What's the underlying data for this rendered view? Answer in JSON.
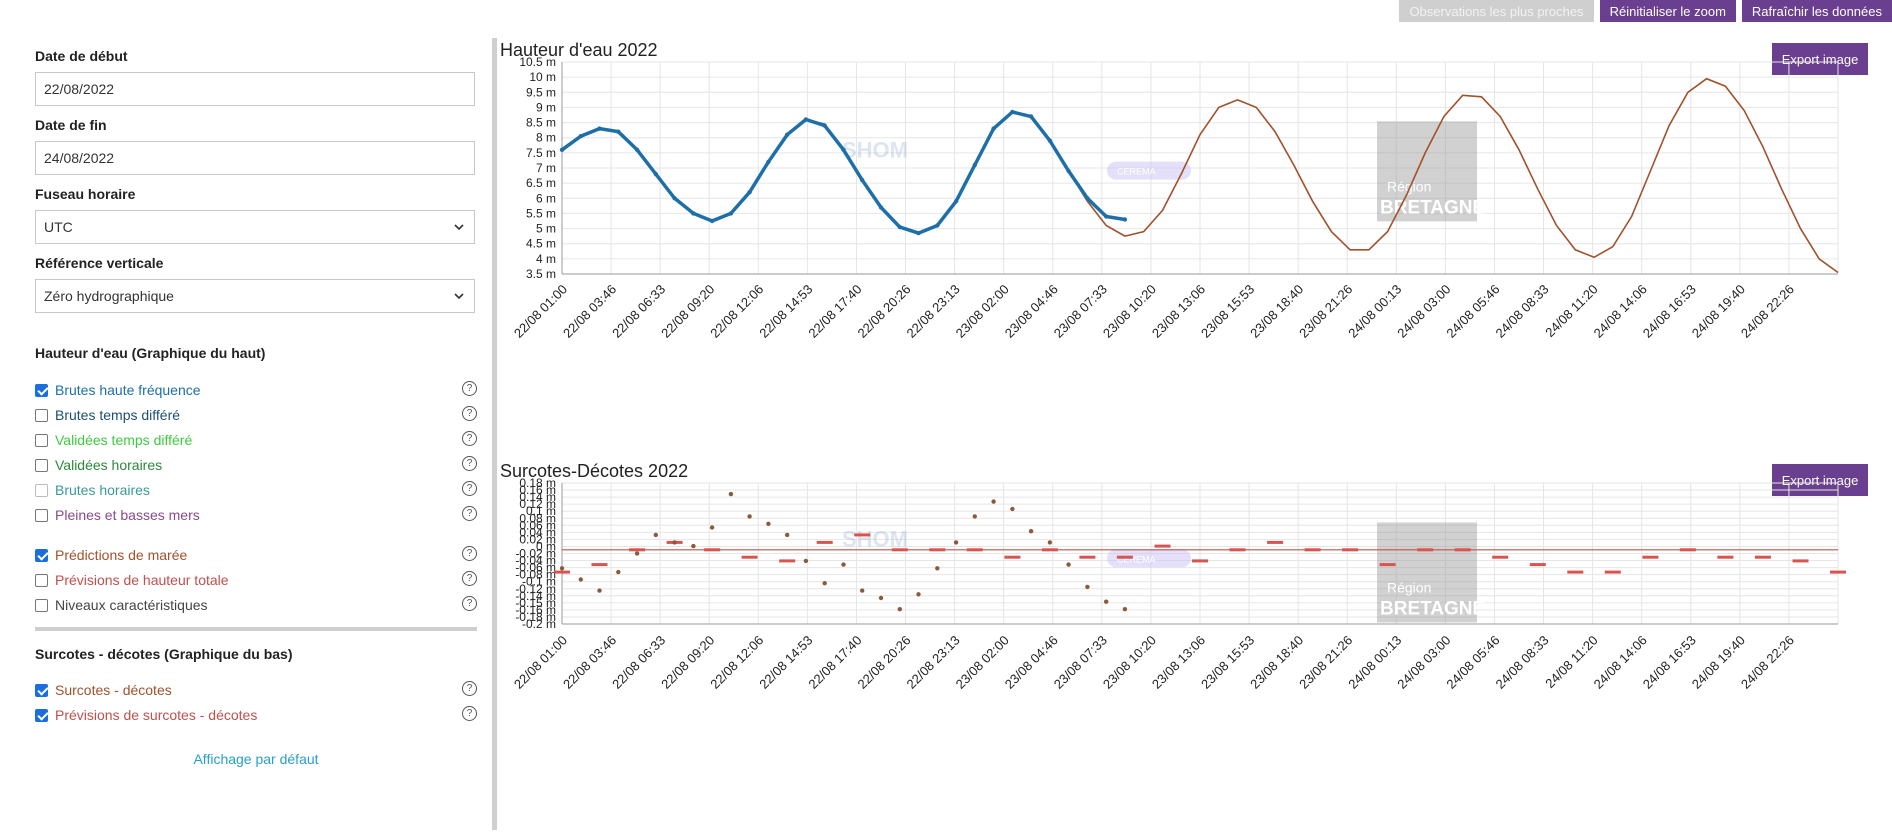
{
  "toolbar": {
    "closest_obs_label": "Observations les plus proches",
    "reset_zoom_label": "Réinitialiser le zoom",
    "refresh_label": "Rafraîchir les données"
  },
  "form": {
    "start_date_label": "Date de début",
    "start_date_value": "22/08/2022",
    "end_date_label": "Date de fin",
    "end_date_value": "24/08/2022",
    "timezone_label": "Fuseau horaire",
    "timezone_value": "UTC",
    "vref_label": "Référence verticale",
    "vref_value": "Zéro hydrographique"
  },
  "sections": {
    "water_height": "Hauteur d'eau (Graphique du haut)",
    "surge": "Surcotes - décotes (Graphique du bas)"
  },
  "options": [
    {
      "label": "Brutes haute fréquence",
      "checked": true,
      "color": "#1e6fa8"
    },
    {
      "label": "Brutes temps différé",
      "checked": false,
      "color": "#1d4f73"
    },
    {
      "label": "Validées temps différé",
      "checked": false,
      "color": "#3dcc3d"
    },
    {
      "label": "Validées horaires",
      "checked": false,
      "color": "#2a8a3a"
    },
    {
      "label": "Brutes horaires",
      "checked": false,
      "color": "#3a9a9a"
    },
    {
      "label": "Pleines et basses mers",
      "checked": false,
      "color": "#8a4a8a"
    },
    {
      "label": "Prédictions de marée",
      "checked": true,
      "color": "#a0522d"
    },
    {
      "label": "Prévisions de hauteur totale",
      "checked": false,
      "color": "#c0504d"
    },
    {
      "label": "Niveaux caractéristiques",
      "checked": false,
      "color": "#444444"
    },
    {
      "label": "Surcotes - décotes",
      "checked": true,
      "color": "#a0522d"
    },
    {
      "label": "Prévisions de surcotes - décotes",
      "checked": true,
      "color": "#c0504d"
    }
  ],
  "default_view_label": "Affichage par défaut",
  "export_label": "Export image",
  "watermarks": {
    "shom": "SHOM",
    "region": "Région",
    "bretagne": "BRETAGNE",
    "badge": "CEREMA"
  },
  "x_tick_labels": [
    "22/08 01:00",
    "22/08 03:46",
    "22/08 06:33",
    "22/08 09:20",
    "22/08 12:06",
    "22/08 14:53",
    "22/08 17:40",
    "22/08 20:26",
    "22/08 23:13",
    "23/08 02:00",
    "23/08 04:46",
    "23/08 07:33",
    "23/08 10:20",
    "23/08 13:06",
    "23/08 15:53",
    "23/08 18:40",
    "23/08 21:26",
    "24/08 00:13",
    "24/08 03:00",
    "24/08 05:46",
    "24/08 08:33",
    "24/08 11:20",
    "24/08 14:06",
    "24/08 16:53",
    "24/08 19:40",
    "24/08 22:26"
  ],
  "chart_data": [
    {
      "type": "line",
      "title": "Hauteur d'eau 2022",
      "ylim": [
        3.5,
        10.5
      ],
      "y_ticks": [
        "10.5 m",
        "10 m",
        "9.5 m",
        "9 m",
        "8.5 m",
        "8 m",
        "7.5 m",
        "7 m",
        "6.5 m",
        "6 m",
        "5.5 m",
        "5 m",
        "4.5 m",
        "4 m",
        "3.5 m"
      ],
      "x_hours": [
        0,
        68
      ],
      "series": [
        {
          "name": "Brutes haute fréquence",
          "color": "#1e6fa8",
          "x_hours": [
            0,
            1,
            2,
            3,
            4,
            5,
            6,
            7,
            8,
            9,
            10,
            11,
            12,
            13,
            14,
            15,
            16,
            17,
            18,
            19,
            20,
            21,
            22,
            23,
            24,
            25,
            26,
            27,
            28,
            29,
            30
          ],
          "values": [
            7.6,
            8.05,
            8.3,
            8.2,
            7.6,
            6.8,
            6.0,
            5.5,
            5.25,
            5.5,
            6.2,
            7.2,
            8.1,
            8.6,
            8.4,
            7.6,
            6.6,
            5.7,
            5.05,
            4.85,
            5.1,
            5.9,
            7.1,
            8.3,
            8.85,
            8.7,
            7.9,
            6.9,
            6.0,
            5.4,
            5.3
          ]
        },
        {
          "name": "Prédictions de marée",
          "color": "#a0522d",
          "x_hours": [
            0,
            1,
            2,
            3,
            4,
            5,
            6,
            7,
            8,
            9,
            10,
            11,
            12,
            13,
            14,
            15,
            16,
            17,
            18,
            19,
            20,
            21,
            22,
            23,
            24,
            25,
            26,
            27,
            28,
            29,
            30,
            31,
            32,
            33,
            34,
            35,
            36,
            37,
            38,
            39,
            40,
            41,
            42,
            43,
            44,
            45,
            46,
            47,
            48,
            49,
            50,
            51,
            52,
            53,
            54,
            55,
            56,
            57,
            58,
            59,
            60,
            61,
            62,
            63,
            64,
            65,
            66,
            67,
            68
          ],
          "values": [
            7.55,
            8.05,
            8.3,
            8.2,
            7.6,
            6.8,
            6.0,
            5.5,
            5.25,
            5.5,
            6.2,
            7.2,
            8.1,
            8.6,
            8.45,
            7.6,
            6.6,
            5.7,
            5.05,
            4.85,
            5.1,
            5.9,
            7.1,
            8.3,
            8.85,
            8.7,
            7.9,
            6.9,
            5.9,
            5.1,
            4.75,
            4.9,
            5.6,
            6.8,
            8.1,
            9.0,
            9.25,
            9.0,
            8.2,
            7.1,
            5.9,
            4.9,
            4.3,
            4.3,
            4.9,
            6.1,
            7.5,
            8.7,
            9.4,
            9.35,
            8.7,
            7.6,
            6.3,
            5.1,
            4.3,
            4.05,
            4.4,
            5.4,
            6.9,
            8.4,
            9.5,
            9.95,
            9.7,
            8.9,
            7.7,
            6.3,
            5.0,
            4.0,
            3.55
          ]
        }
      ]
    },
    {
      "type": "scatter",
      "title": "Surcotes-Décotes 2022",
      "ylim": [
        -0.2,
        0.18
      ],
      "y_ticks": [
        "0.18 m",
        "0.16 m",
        "0.14 m",
        "0.12 m",
        "0.1 m",
        "0.08 m",
        "0.06 m",
        "0.04 m",
        "0.02 m",
        "0 m",
        "-0.02 m",
        "-0.04 m",
        "-0.06 m",
        "-0.08 m",
        "-0.1 m",
        "-0.12 m",
        "-0.14 m",
        "-0.15 m",
        "-0.16 m",
        "-0.18 m",
        "-0.2 m"
      ],
      "series": [
        {
          "name": "Surcotes - décotes",
          "color": "#8b5a3c",
          "x_hours": [
            0,
            1,
            2,
            3,
            4,
            5,
            6,
            7,
            8,
            9,
            10,
            11,
            12,
            13,
            14,
            15,
            16,
            17,
            18,
            19,
            20,
            21,
            22,
            23,
            24,
            25,
            26,
            27,
            28,
            29,
            30
          ],
          "values": [
            -0.05,
            -0.08,
            -0.11,
            -0.06,
            -0.01,
            0.04,
            0.02,
            0.01,
            0.06,
            0.15,
            0.09,
            0.07,
            0.04,
            -0.03,
            -0.09,
            -0.04,
            -0.11,
            -0.13,
            -0.16,
            -0.12,
            -0.05,
            0.02,
            0.09,
            0.13,
            0.11,
            0.05,
            0.02,
            -0.04,
            -0.1,
            -0.14,
            -0.16
          ]
        },
        {
          "name": "Prévisions de surcotes - décotes",
          "color": "#d9534f",
          "x_hours": [
            0,
            2,
            4,
            6,
            8,
            10,
            12,
            14,
            16,
            18,
            20,
            22,
            24,
            26,
            28,
            30,
            32,
            34,
            36,
            38,
            40,
            42,
            44,
            46,
            48,
            50,
            52,
            54,
            56,
            58,
            60,
            62,
            64,
            66,
            68
          ],
          "values": [
            -0.06,
            -0.04,
            0.0,
            0.02,
            0.0,
            -0.02,
            -0.03,
            0.02,
            0.04,
            0.0,
            0.0,
            0.0,
            -0.02,
            0.0,
            -0.02,
            -0.02,
            0.01,
            -0.03,
            0.0,
            0.02,
            0.0,
            0.0,
            -0.04,
            0.0,
            0.0,
            -0.02,
            -0.04,
            -0.06,
            -0.06,
            -0.02,
            0.0,
            -0.02,
            -0.02,
            -0.03,
            -0.06
          ]
        }
      ]
    }
  ]
}
